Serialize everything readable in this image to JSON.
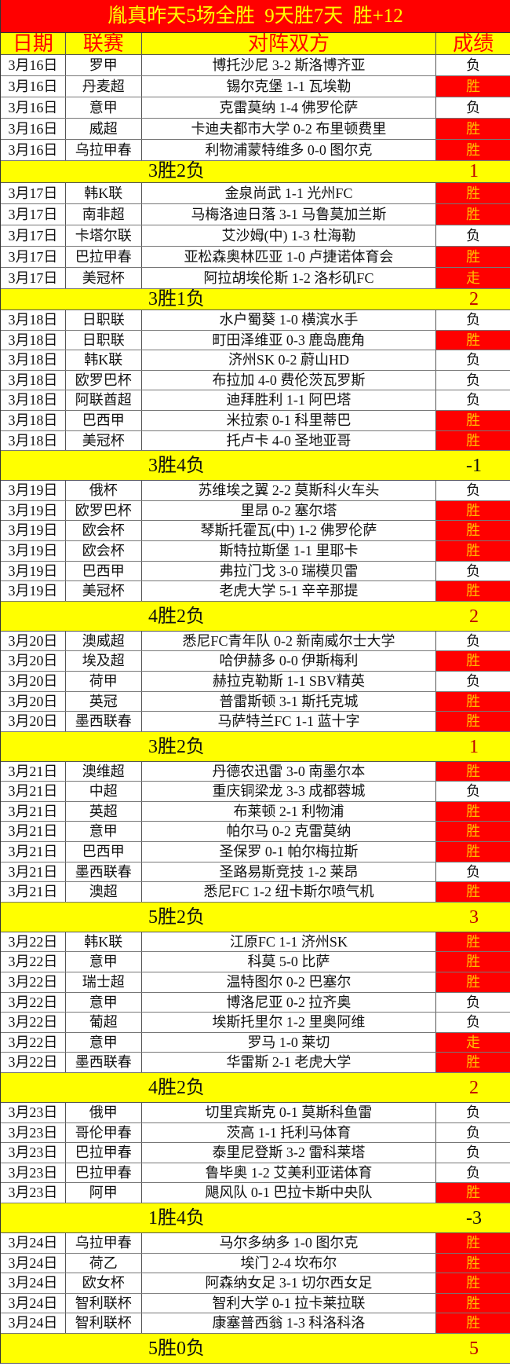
{
  "title": "胤真昨天5场全胜  9天胜7天  胜+12",
  "headers": {
    "date": "日期",
    "league": "联赛",
    "match": "对阵双方",
    "result": "成绩"
  },
  "colors": {
    "win_bg": "#ff0000",
    "win_text": "#ffc000",
    "summary_bg": "#ffff00",
    "title_bg": "#ff0000",
    "positive_value": "#c00000"
  },
  "groups": [
    {
      "rows": [
        [
          "3月16日",
          "罗甲",
          "博托沙尼 3-2 斯洛博齐亚",
          "负"
        ],
        [
          "3月16日",
          "丹麦超",
          "锡尔克堡 1-1 瓦埃勒",
          "胜"
        ],
        [
          "3月16日",
          "意甲",
          "克雷莫纳 1-4 佛罗伦萨",
          "负"
        ],
        [
          "3月16日",
          "威超",
          "卡迪夫都市大学 0-2 布里顿费里",
          "胜"
        ],
        [
          "3月16日",
          "乌拉甲春",
          "利物浦蒙特维多 0-0 图尔克",
          "胜"
        ]
      ],
      "summary": "3胜2负",
      "value": "1"
    },
    {
      "rows": [
        [
          "3月17日",
          "韩K联",
          "金泉尚武 1-1 光州FC",
          "胜"
        ],
        [
          "3月17日",
          "南非超",
          "马梅洛迪日落 3-1 马鲁莫加兰斯",
          "胜"
        ],
        [
          "3月17日",
          "卡塔尔联",
          "艾沙姆(中) 1-3 杜海勒",
          "负"
        ],
        [
          "3月17日",
          "巴拉甲春",
          "亚松森奥林匹亚 1-0 卢捷诺体育会",
          "胜"
        ],
        [
          "3月17日",
          "美冠杯",
          "阿拉胡埃伦斯 1-2 洛杉矶FC",
          "走"
        ]
      ],
      "summary": "3胜1负",
      "value": "2"
    },
    {
      "rows": [
        [
          "3月18日",
          "日职联",
          "水户蜀葵 1-0 横滨水手",
          "负"
        ],
        [
          "3月18日",
          "日职联",
          "町田泽维亚 0-3 鹿岛鹿角",
          "胜"
        ],
        [
          "3月18日",
          "韩K联",
          "济州SK 0-2 蔚山HD",
          "负"
        ],
        [
          "3月18日",
          "欧罗巴杯",
          "布拉加 4-0 费伦茨瓦罗斯",
          "负"
        ],
        [
          "3月18日",
          "阿联酋超",
          "迪拜胜利 1-1 阿巴塔",
          "负"
        ],
        [
          "3月18日",
          "巴西甲",
          "米拉索 0-1 科里蒂巴",
          "胜"
        ],
        [
          "3月18日",
          "美冠杯",
          "托卢卡 4-0 圣地亚哥",
          "胜"
        ]
      ],
      "summary": "3胜4负",
      "value": "-1"
    },
    {
      "rows": [
        [
          "3月19日",
          "俄杯",
          "苏维埃之翼 2-2 莫斯科火车头",
          "负"
        ],
        [
          "3月19日",
          "欧罗巴杯",
          "里昂 0-2 塞尔塔",
          "胜"
        ],
        [
          "3月19日",
          "欧会杯",
          "琴斯托霍瓦(中) 1-2 佛罗伦萨",
          "胜"
        ],
        [
          "3月19日",
          "欧会杯",
          "斯特拉斯堡 1-1 里耶卡",
          "胜"
        ],
        [
          "3月19日",
          "巴西甲",
          "弗拉门戈 3-0 瑞模贝雷",
          "负"
        ],
        [
          "3月19日",
          "美冠杯",
          "老虎大学 5-1 辛辛那提",
          "胜"
        ]
      ],
      "summary": "4胜2负",
      "value": "2"
    },
    {
      "rows": [
        [
          "3月20日",
          "澳威超",
          "悉尼FC青年队 0-2 新南威尔士大学",
          "负"
        ],
        [
          "3月20日",
          "埃及超",
          "哈伊赫多 0-0 伊斯梅利",
          "胜"
        ],
        [
          "3月20日",
          "荷甲",
          "赫拉克勒斯 1-1 SBV精英",
          "负"
        ],
        [
          "3月20日",
          "英冠",
          "普雷斯顿 3-1 斯托克城",
          "胜"
        ],
        [
          "3月20日",
          "墨西联春",
          "马萨特兰FC 1-1 蓝十字",
          "胜"
        ]
      ],
      "summary": "3胜2负",
      "value": "1"
    },
    {
      "rows": [
        [
          "3月21日",
          "澳维超",
          "丹德农迅雷 3-0 南墨尔本",
          "胜"
        ],
        [
          "3月21日",
          "中超",
          "重庆铜梁龙 3-3 成都蓉城",
          "负"
        ],
        [
          "3月21日",
          "英超",
          "布莱顿 2-1 利物浦",
          "胜"
        ],
        [
          "3月21日",
          "意甲",
          "帕尔马 0-2 克雷莫纳",
          "胜"
        ],
        [
          "3月21日",
          "巴西甲",
          "圣保罗 0-1 帕尔梅拉斯",
          "胜"
        ],
        [
          "3月21日",
          "墨西联春",
          "圣路易斯竞技 1-2 莱昂",
          "负"
        ],
        [
          "3月21日",
          "澳超",
          "悉尼FC 1-2 纽卡斯尔喷气机",
          "胜"
        ]
      ],
      "summary": "5胜2负",
      "value": "3"
    },
    {
      "rows": [
        [
          "3月22日",
          "韩K联",
          "江原FC 1-1 济州SK",
          "胜"
        ],
        [
          "3月22日",
          "意甲",
          "科莫 5-0 比萨",
          "胜"
        ],
        [
          "3月22日",
          "瑞士超",
          "温特图尔 0-2 巴塞尔",
          "胜"
        ],
        [
          "3月22日",
          "意甲",
          "博洛尼亚 0-2 拉齐奥",
          "负"
        ],
        [
          "3月22日",
          "葡超",
          "埃斯托里尔 1-2 里奥阿维",
          "负"
        ],
        [
          "3月22日",
          "意甲",
          "罗马 1-0 莱切",
          "走"
        ],
        [
          "3月22日",
          "墨西联春",
          "华雷斯 2-1 老虎大学",
          "胜"
        ]
      ],
      "summary": "4胜2负",
      "value": "2"
    },
    {
      "rows": [
        [
          "3月23日",
          "俄甲",
          "切里宾斯克 0-1 莫斯科鱼雷",
          "负"
        ],
        [
          "3月23日",
          "哥伦甲春",
          "茨高 1-1 托利马体育",
          "负"
        ],
        [
          "3月23日",
          "巴拉甲春",
          "泰里尼登斯 3-2 雷科莱塔",
          "负"
        ],
        [
          "3月23日",
          "巴拉甲春",
          "鲁毕奥 1-2 艾美利亚诺体育",
          "负"
        ],
        [
          "3月23日",
          "阿甲",
          "飓风队 0-1 巴拉卡斯中央队",
          "胜"
        ]
      ],
      "summary": "1胜4负",
      "value": "-3"
    },
    {
      "rows": [
        [
          "3月24日",
          "乌拉甲春",
          "马尔多纳多 1-0 图尔克",
          "胜"
        ],
        [
          "3月24日",
          "荷乙",
          "埃门 2-4 坎布尔",
          "胜"
        ],
        [
          "3月24日",
          "欧女杯",
          "阿森纳女足 3-1 切尔西女足",
          "胜"
        ],
        [
          "3月24日",
          "智利联杯",
          "智利大学 0-1 拉卡莱拉联",
          "胜"
        ],
        [
          "3月24日",
          "智利联杯",
          "康塞普西翁 1-3 科洛科洛",
          "胜"
        ]
      ],
      "summary": "5胜0负",
      "value": "5"
    }
  ]
}
